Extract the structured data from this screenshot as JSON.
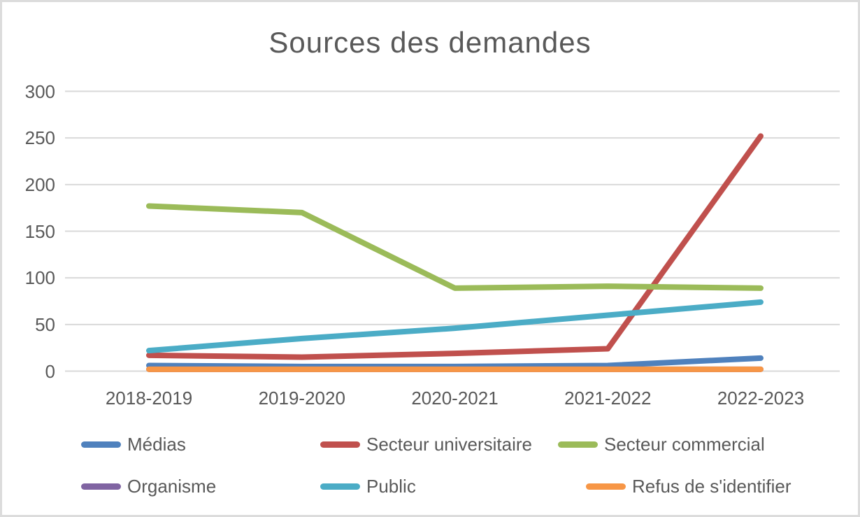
{
  "chart_data": {
    "type": "line",
    "title": "Sources des demandes",
    "categories": [
      "2018-2019",
      "2019-2020",
      "2020-2021",
      "2021-2022",
      "2022-2023"
    ],
    "series": [
      {
        "name": "Médias",
        "color": "#4F81BD",
        "values": [
          6,
          5,
          5,
          6,
          14
        ]
      },
      {
        "name": "Secteur universitaire",
        "color": "#C0504D",
        "values": [
          17,
          15,
          19,
          24,
          252
        ]
      },
      {
        "name": "Secteur commercial",
        "color": "#9BBB59",
        "values": [
          177,
          170,
          89,
          91,
          89
        ]
      },
      {
        "name": "Organisme",
        "color": "#8064A2",
        "values": [
          2,
          2,
          2,
          2,
          2
        ]
      },
      {
        "name": "Public",
        "color": "#4BACC6",
        "values": [
          22,
          35,
          46,
          60,
          74
        ]
      },
      {
        "name": "Refus de s'identifier",
        "color": "#F79646",
        "values": [
          2,
          2,
          2,
          2,
          2
        ]
      }
    ],
    "ylim": [
      0,
      300
    ],
    "yticks": [
      0,
      50,
      100,
      150,
      200,
      250,
      300
    ],
    "grid": true,
    "legend_position": "bottom",
    "text_color": "#595959",
    "gridline_color": "#D9D9D9",
    "xlabel": "",
    "ylabel": ""
  }
}
